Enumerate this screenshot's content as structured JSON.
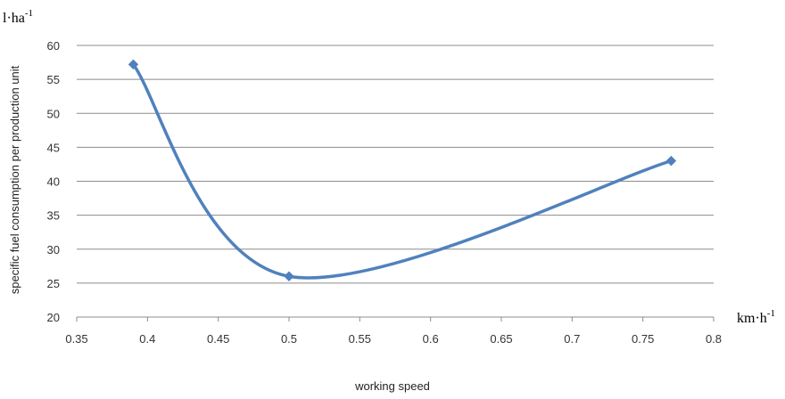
{
  "chart_data": {
    "type": "line",
    "title": "",
    "xlabel": "working speed",
    "ylabel": "specific fuel consumption per production unit",
    "x_unit": {
      "base": "km·h",
      "exponent": "-1"
    },
    "y_unit": {
      "base": "l·ha",
      "exponent": "-1"
    },
    "xlim": [
      0.35,
      0.8
    ],
    "ylim": [
      20,
      60
    ],
    "x_ticks": [
      "0.35",
      "0.4",
      "0.45",
      "0.5",
      "0.55",
      "0.6",
      "0.65",
      "0.7",
      "0.75",
      "0.8"
    ],
    "y_ticks": [
      "20",
      "25",
      "30",
      "35",
      "40",
      "45",
      "50",
      "55",
      "60"
    ],
    "grid": "horizontal",
    "smooth": true,
    "marker": "diamond",
    "series": [
      {
        "name": "",
        "color": "#4f81bd",
        "points": [
          {
            "x": 0.39,
            "y": 57.2
          },
          {
            "x": 0.5,
            "y": 26.0
          },
          {
            "x": 0.77,
            "y": 43.0
          }
        ]
      }
    ]
  }
}
